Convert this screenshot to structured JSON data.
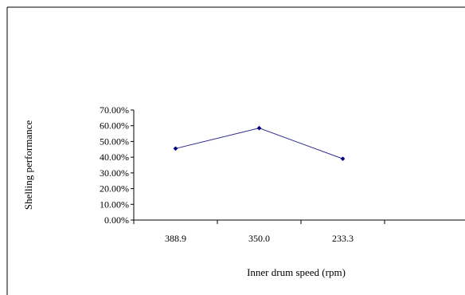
{
  "chart_data": {
    "type": "line",
    "categories": [
      "388.9",
      "350.0",
      "233.3"
    ],
    "series": [
      {
        "values": [
          45.5,
          58.5,
          39.0
        ],
        "color": "#2b2b8f"
      }
    ],
    "xlabel": "Inner drum speed (rpm)",
    "ylabel": "Shelling performance",
    "ylim": [
      0,
      70
    ],
    "yticks": [
      "0.00%",
      "10.00%",
      "20.00%",
      "30.00%",
      "40.00%",
      "50.00%",
      "60.00%",
      "70.00%"
    ],
    "grid": false,
    "axis_color": "#000000",
    "border_color": "#000000"
  }
}
